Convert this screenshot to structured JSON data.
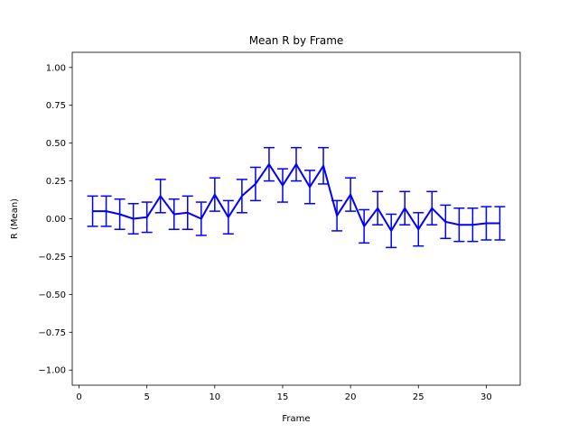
{
  "chart_data": {
    "type": "line",
    "title": "Mean R by Frame",
    "xlabel": "Frame",
    "ylabel": "R (Mean)",
    "xlim": [
      -0.5,
      32.5
    ],
    "ylim": [
      -1.1,
      1.1
    ],
    "xticks": [
      "0",
      "5",
      "10",
      "15",
      "20",
      "25",
      "30"
    ],
    "yticks": [
      "−1.00",
      "−0.75",
      "−0.50",
      "−0.25",
      "0.00",
      "0.25",
      "0.50",
      "0.75",
      "1.00"
    ],
    "grid": false,
    "color": "#0000ff",
    "series": [
      {
        "x": [
          1,
          2,
          3,
          4,
          5,
          6,
          7,
          8,
          9,
          10,
          11,
          12,
          13,
          14,
          15,
          16,
          17,
          18,
          19,
          20,
          21,
          22,
          23,
          24,
          25,
          26,
          27,
          28,
          29,
          30,
          31
        ],
        "y": [
          0.05,
          0.05,
          0.03,
          0.0,
          0.01,
          0.15,
          0.03,
          0.04,
          0.0,
          0.16,
          0.01,
          0.15,
          0.23,
          0.36,
          0.22,
          0.36,
          0.21,
          0.35,
          0.02,
          0.16,
          -0.05,
          0.07,
          -0.08,
          0.07,
          -0.07,
          0.07,
          -0.02,
          -0.04,
          -0.04,
          -0.03,
          -0.03
        ],
        "yerr": [
          0.1,
          0.1,
          0.1,
          0.1,
          0.1,
          0.11,
          0.1,
          0.11,
          0.11,
          0.11,
          0.11,
          0.11,
          0.11,
          0.11,
          0.11,
          0.11,
          0.11,
          0.12,
          0.1,
          0.11,
          0.11,
          0.11,
          0.11,
          0.11,
          0.11,
          0.11,
          0.11,
          0.11,
          0.11,
          0.11,
          0.11
        ]
      }
    ]
  }
}
